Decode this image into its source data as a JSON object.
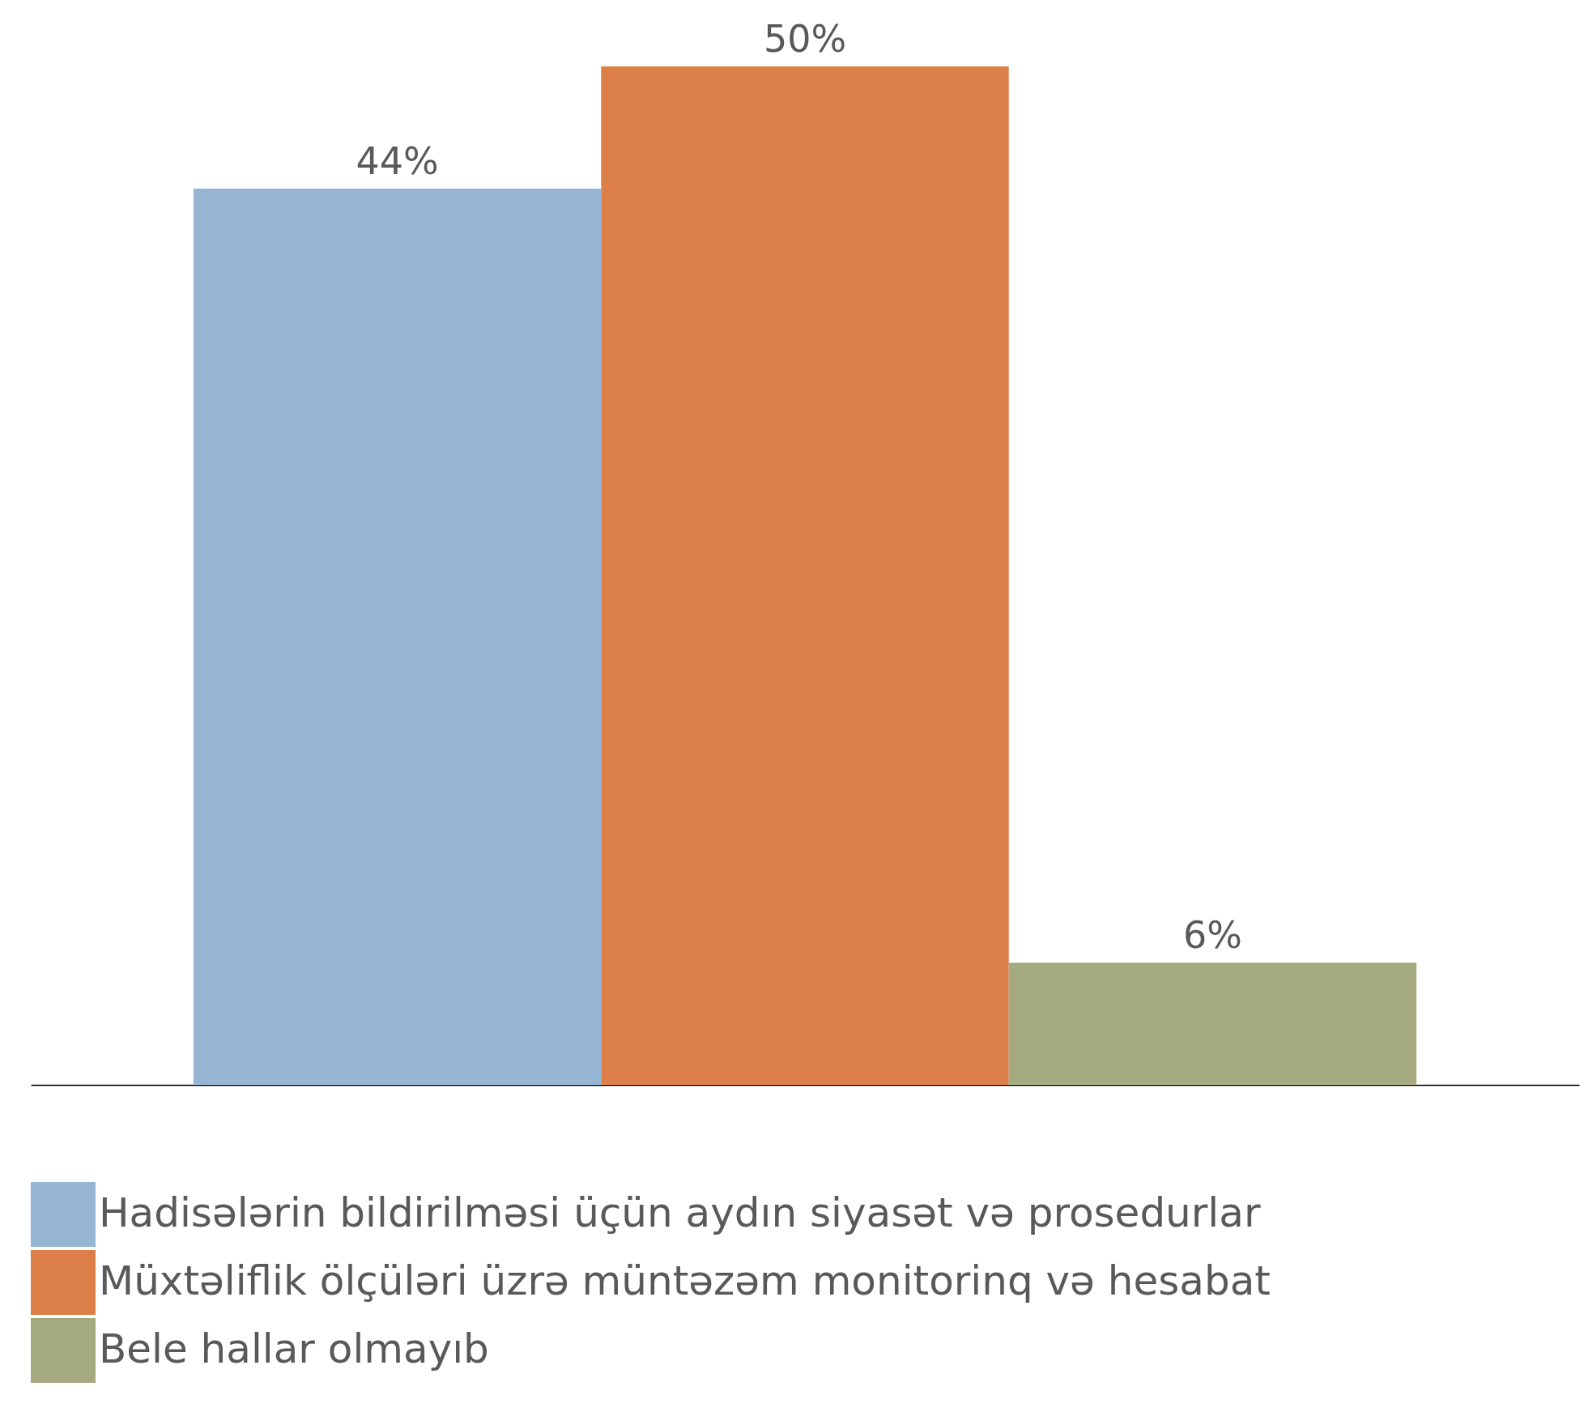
{
  "chart_data": {
    "type": "bar",
    "categories": [
      null
    ],
    "series": [
      {
        "name": "Hadisələrin bildirilməsi üçün aydın siyasət və prosedurlar",
        "color": "#95b5d3",
        "values": [
          44
        ],
        "value_labels": [
          "44%"
        ]
      },
      {
        "name": "Müxtəliflik ölçüləri üzrə müntəzəm monitorinq və hesabat",
        "color": "#dd7f48",
        "values": [
          50
        ],
        "value_labels": [
          "50%"
        ]
      },
      {
        "name": "Bele hallar olmayıb",
        "color": "#a5aa80",
        "values": [
          6
        ],
        "value_labels": [
          "6%"
        ]
      }
    ],
    "legend": "bottom"
  }
}
